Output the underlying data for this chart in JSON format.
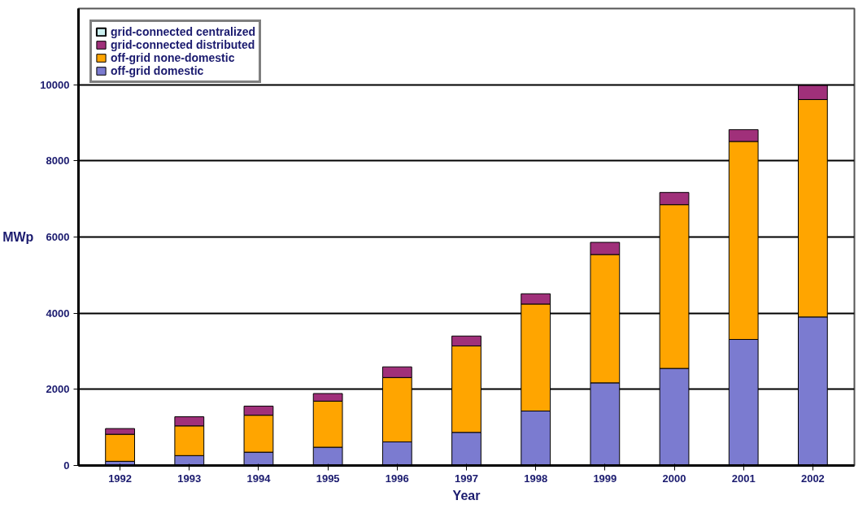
{
  "chart_data": {
    "type": "bar",
    "stacked": true,
    "xlabel": "Year",
    "ylabel": "MWp",
    "categories": [
      "1992",
      "1993",
      "1994",
      "1995",
      "1996",
      "1997",
      "1998",
      "1999",
      "2000",
      "2001",
      "2002"
    ],
    "series": [
      {
        "name": "off-grid domestic",
        "color": "#7b7bd0",
        "values": [
          110,
          260,
          350,
          480,
          620,
          870,
          1430,
          2170,
          2550,
          3310,
          3900
        ]
      },
      {
        "name": "off-grid none-domestic",
        "color": "#ffa500",
        "values": [
          710,
          780,
          970,
          1210,
          1690,
          2270,
          2810,
          3370,
          4300,
          5200,
          5710
        ]
      },
      {
        "name": "grid-connected distributed",
        "color": "#a0307a",
        "values": [
          150,
          240,
          240,
          200,
          280,
          260,
          270,
          320,
          320,
          310,
          370
        ]
      },
      {
        "name": "grid-connected centralized",
        "color": "#ccf0f0",
        "values": [
          null,
          null,
          null,
          null,
          null,
          null,
          null,
          null,
          null,
          null,
          null
        ]
      }
    ],
    "ylim": [
      0,
      12000
    ],
    "yticks": [
      0,
      2000,
      4000,
      6000,
      8000,
      10000
    ],
    "grid": "y",
    "legend": "top left"
  }
}
